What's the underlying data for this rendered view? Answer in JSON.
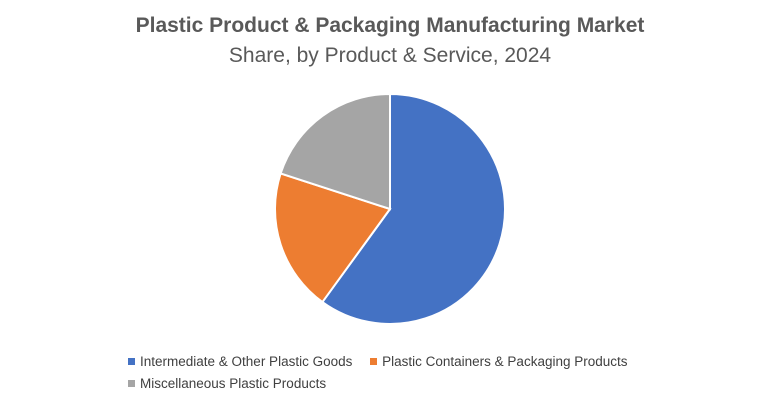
{
  "chart_data": {
    "type": "pie",
    "title": "Plastic Product & Packaging Manufacturing Market",
    "subtitle": "Share, by Product & Service, 2024",
    "categories": [
      "Intermediate & Other Plastic Goods",
      "Plastic Containers & Packaging Products",
      "Miscellaneous Plastic Products"
    ],
    "values": [
      60,
      20,
      20
    ],
    "unit": "%",
    "colors": [
      "#4472C4",
      "#ED7D31",
      "#A5A5A5"
    ],
    "legend_position": "bottom"
  }
}
